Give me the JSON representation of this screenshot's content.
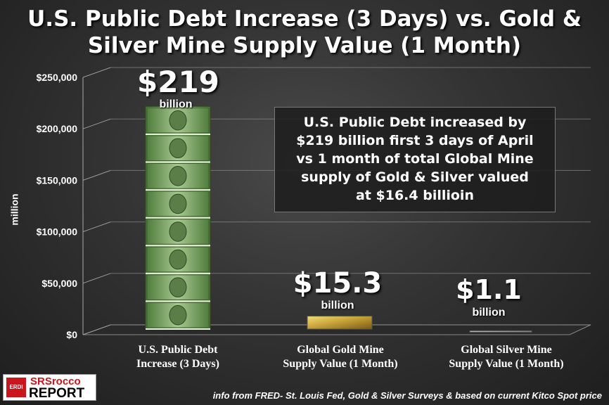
{
  "title_line1": "U.S. Public Debt Increase (3 Days) vs. Gold &",
  "title_line2": "Silver Mine Supply Value (1 Month)",
  "callout": {
    "line1": "U.S. Public Debt increased by",
    "line2": "$219 billion first 3 days of April",
    "line3": "vs 1 month of total Global Mine",
    "line4": "supply of Gold & Silver valued",
    "line5": "at $16.4 billioin"
  },
  "bar_labels": [
    {
      "value": "$219",
      "unit": "billion"
    },
    {
      "value": "$15.3",
      "unit": "billion"
    },
    {
      "value": "$1.1",
      "unit": "billion"
    }
  ],
  "categories_display": [
    {
      "line1": "U.S. Public Debt",
      "line2": "Increase (3 Days)"
    },
    {
      "line1": "Global Gold Mine",
      "line2": "Supply Value (1 Month)"
    },
    {
      "line1": "Global Silver Mine",
      "line2": "Supply Value (1 Month)"
    }
  ],
  "source": "info from FRED- St. Louis Fed, Gold & Silver Surveys & based on current Kitco Spot price",
  "logo": {
    "emblem": "ERDI",
    "line1": "SRSrocco",
    "line2": "REPORT"
  },
  "colors": {
    "money": "#6f9a55",
    "gold": "#c9a43a",
    "silver": "#9a9a9a",
    "background": "#333333"
  },
  "chart_data": {
    "type": "bar",
    "categories": [
      "U.S. Public Debt Increase (3 Days)",
      "Global Gold Mine Supply Value (1 Month)",
      "Global Silver Mine Supply Value (1 Month)"
    ],
    "values": [
      219000,
      15300,
      1100
    ],
    "ylabel": "million",
    "ylim": [
      0,
      250000
    ],
    "yticks": [
      "$0",
      "$50,000",
      "$100,000",
      "$150,000",
      "$200,000",
      "$250,000"
    ],
    "grid": true
  }
}
